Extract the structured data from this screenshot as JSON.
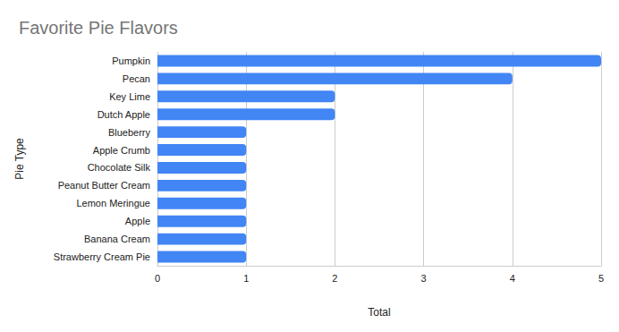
{
  "chart_data": {
    "type": "bar",
    "title": "Favorite Pie Flavors",
    "orientation": "horizontal",
    "x_label": "Total",
    "y_label": "Pie Type",
    "categories": [
      "Pumpkin",
      "Pecan",
      "Key Lime",
      "Dutch Apple",
      "Blueberry",
      "Apple Crumb",
      "Chocolate Silk",
      "Peanut Butter Cream",
      "Lemon Meringue",
      "Apple",
      "Banana Cream",
      "Strawberry Cream Pie"
    ],
    "values": [
      5,
      4,
      2,
      2,
      1,
      1,
      1,
      1,
      1,
      1,
      1,
      1
    ],
    "color": "#4285f4",
    "xlim": [
      0,
      5
    ],
    "xticks": [
      0,
      1,
      2,
      3,
      4,
      5
    ],
    "grid": true
  }
}
